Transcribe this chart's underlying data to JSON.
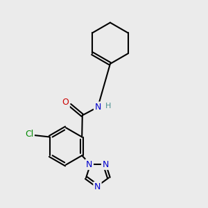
{
  "bg_color": "#ebebeb",
  "bond_color": "#000000",
  "lw": 1.5,
  "dbo": 0.065,
  "atom_colors": {
    "O": "#cc0000",
    "N": "#0000cc",
    "Cl": "#008800",
    "H": "#4a9090"
  },
  "fs": 9.0,
  "fs_small": 8.0
}
